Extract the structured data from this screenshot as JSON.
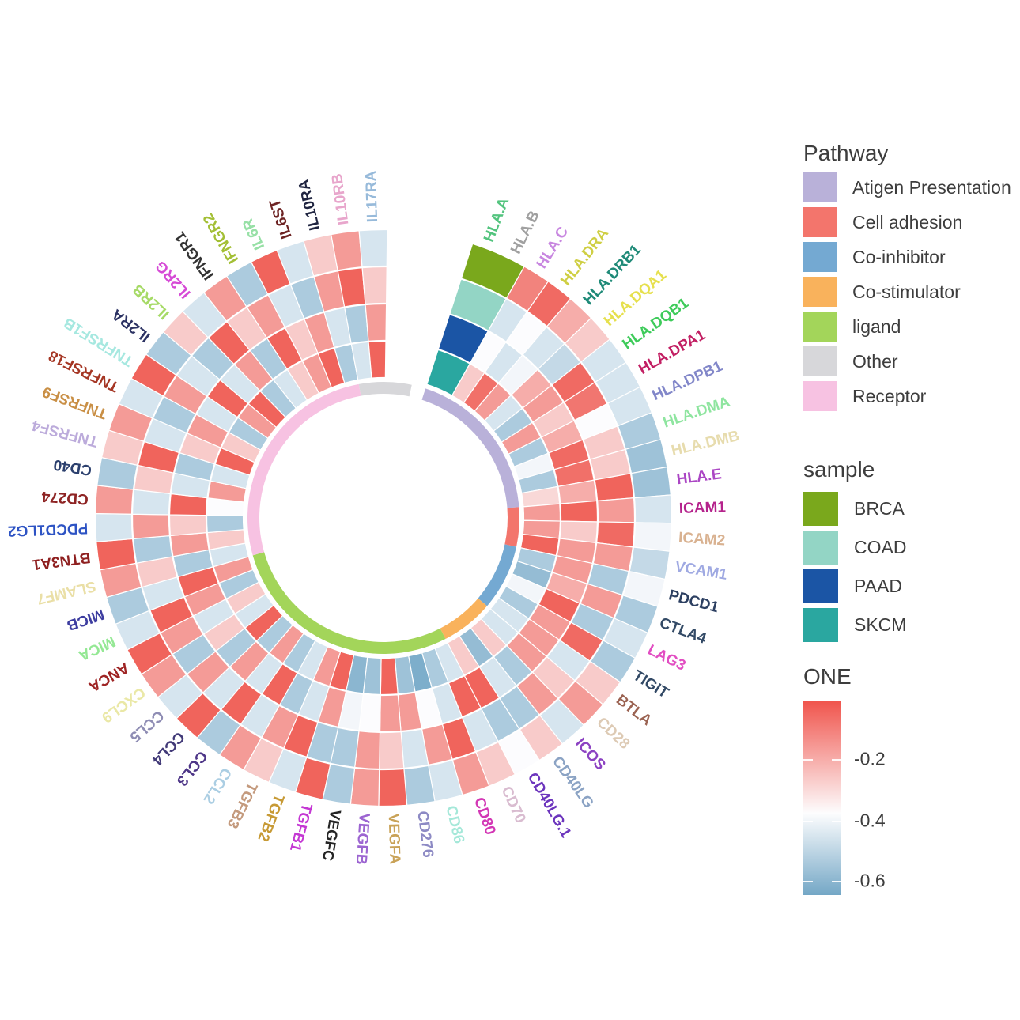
{
  "pathway_legend": {
    "title": "Pathway",
    "items": [
      {
        "label": "Atigen Presentation",
        "color": "#b9b1d9"
      },
      {
        "label": "Cell adhesion",
        "color": "#f3756c"
      },
      {
        "label": "Co-inhibitor",
        "color": "#74a9d2"
      },
      {
        "label": "Co-stimulator",
        "color": "#f9b25c"
      },
      {
        "label": "ligand",
        "color": "#a3d55a"
      },
      {
        "label": "Other",
        "color": "#d7d7da"
      },
      {
        "label": "Receptor",
        "color": "#f7c2e2"
      }
    ]
  },
  "sample_legend": {
    "title": "sample",
    "items": [
      {
        "label": "BRCA",
        "color": "#7aa81c"
      },
      {
        "label": "COAD",
        "color": "#93d5c5"
      },
      {
        "label": "PAAD",
        "color": "#1b55a5"
      },
      {
        "label": "SKCM",
        "color": "#2aa7a0"
      }
    ]
  },
  "colorbar": {
    "title": "ONE",
    "gradient_top": "#f0544c",
    "gradient_mid": "#fdfdfe",
    "gradient_bottom": "#74a7c6",
    "ticks": [
      {
        "label": "-0.2",
        "pos": 0.3
      },
      {
        "label": "-0.4",
        "pos": 0.617
      },
      {
        "label": "-0.6",
        "pos": 0.926
      }
    ]
  },
  "chart_data": {
    "type": "heatmap",
    "subtype": "circular-heatmap",
    "value_scale": {
      "name": "ONE",
      "red_at": -0.1,
      "white_at": -0.38,
      "blue_at": -0.68
    },
    "rings_outer_to_inner": [
      "BRCA",
      "COAD",
      "PAAD",
      "SKCM"
    ],
    "genes": [
      {
        "name": "HLA.A",
        "pathway": "Atigen Presentation",
        "label_color": "#53c47e"
      },
      {
        "name": "HLA.B",
        "pathway": "Atigen Presentation",
        "label_color": "#a0a0a0"
      },
      {
        "name": "HLA.C",
        "pathway": "Atigen Presentation",
        "label_color": "#c887e0"
      },
      {
        "name": "HLA.DRA",
        "pathway": "Atigen Presentation",
        "label_color": "#cfcf44"
      },
      {
        "name": "HLA.DRB1",
        "pathway": "Atigen Presentation",
        "label_color": "#1f8a78"
      },
      {
        "name": "HLA.DQA1",
        "pathway": "Atigen Presentation",
        "label_color": "#e6e04e"
      },
      {
        "name": "HLA.DQB1",
        "pathway": "Atigen Presentation",
        "label_color": "#3ecb5a"
      },
      {
        "name": "HLA.DPA1",
        "pathway": "Atigen Presentation",
        "label_color": "#c21f63"
      },
      {
        "name": "HLA.DPB1",
        "pathway": "Atigen Presentation",
        "label_color": "#8287c9"
      },
      {
        "name": "HLA.DMA",
        "pathway": "Atigen Presentation",
        "label_color": "#8fe5a0"
      },
      {
        "name": "HLA.DMB",
        "pathway": "Atigen Presentation",
        "label_color": "#e7dcae"
      },
      {
        "name": "HLA.E",
        "pathway": "Atigen Presentation",
        "label_color": "#ab46c4"
      },
      {
        "name": "ICAM1",
        "pathway": "Cell adhesion",
        "label_color": "#b5238c"
      },
      {
        "name": "ICAM2",
        "pathway": "Cell adhesion",
        "label_color": "#d9b291"
      },
      {
        "name": "VCAM1",
        "pathway": "Cell adhesion",
        "label_color": "#9fa9e2"
      },
      {
        "name": "PDCD1",
        "pathway": "Co-inhibitor",
        "label_color": "#2c3f61"
      },
      {
        "name": "CTLA4",
        "pathway": "Co-inhibitor",
        "label_color": "#334a66"
      },
      {
        "name": "LAG3",
        "pathway": "Co-inhibitor",
        "label_color": "#e24ec2"
      },
      {
        "name": "TIGIT",
        "pathway": "Co-inhibitor",
        "label_color": "#334a66"
      },
      {
        "name": "BTLA",
        "pathway": "Co-inhibitor",
        "label_color": "#9b6352"
      },
      {
        "name": "CD28",
        "pathway": "Co-stimulator",
        "label_color": "#ddcab4"
      },
      {
        "name": "ICOS",
        "pathway": "Co-stimulator",
        "label_color": "#8c42c2"
      },
      {
        "name": "CD40LG",
        "pathway": "Co-stimulator",
        "label_color": "#8ba3c4"
      },
      {
        "name": "CD40LG.1",
        "pathway": "Co-stimulator",
        "label_color": "#6c35bd"
      },
      {
        "name": "CD70",
        "pathway": "ligand",
        "label_color": "#d9bcd0"
      },
      {
        "name": "CD80",
        "pathway": "ligand",
        "label_color": "#d337b5"
      },
      {
        "name": "CD86",
        "pathway": "ligand",
        "label_color": "#a5e8d9"
      },
      {
        "name": "CD276",
        "pathway": "ligand",
        "label_color": "#8d8ac4"
      },
      {
        "name": "VEGFA",
        "pathway": "ligand",
        "label_color": "#c9a257"
      },
      {
        "name": "VEGFB",
        "pathway": "ligand",
        "label_color": "#9c64d1"
      },
      {
        "name": "VEGFC",
        "pathway": "ligand",
        "label_color": "#252525"
      },
      {
        "name": "TGFB1",
        "pathway": "ligand",
        "label_color": "#c437d3"
      },
      {
        "name": "TGFB2",
        "pathway": "ligand",
        "label_color": "#c79a35"
      },
      {
        "name": "TGFB3",
        "pathway": "ligand",
        "label_color": "#c49a7d"
      },
      {
        "name": "CCL2",
        "pathway": "ligand",
        "label_color": "#abcee3"
      },
      {
        "name": "CCL3",
        "pathway": "ligand",
        "label_color": "#4d3587"
      },
      {
        "name": "CCL4",
        "pathway": "ligand",
        "label_color": "#423a78"
      },
      {
        "name": "CCL5",
        "pathway": "ligand",
        "label_color": "#8f8db4"
      },
      {
        "name": "CXCL9",
        "pathway": "ligand",
        "label_color": "#eae8a6"
      },
      {
        "name": "ANCA",
        "pathway": "ligand",
        "label_color": "#9e2424"
      },
      {
        "name": "MICA",
        "pathway": "ligand",
        "label_color": "#94e894"
      },
      {
        "name": "MICB",
        "pathway": "ligand",
        "label_color": "#3d3da0"
      },
      {
        "name": "SLAMF7",
        "pathway": "Receptor",
        "label_color": "#eadfa6"
      },
      {
        "name": "BTN3A1",
        "pathway": "Receptor",
        "label_color": "#8e1f1f"
      },
      {
        "name": "PDCD1LG2",
        "pathway": "Receptor",
        "label_color": "#2d53c4"
      },
      {
        "name": "CD274",
        "pathway": "Receptor",
        "label_color": "#8e2424"
      },
      {
        "name": "CD40",
        "pathway": "Receptor",
        "label_color": "#2c406e"
      },
      {
        "name": "TNFRSF4",
        "pathway": "Receptor",
        "label_color": "#bcabdb"
      },
      {
        "name": "TNFRSF9",
        "pathway": "Receptor",
        "label_color": "#c98f45"
      },
      {
        "name": "TNFRSF18",
        "pathway": "Receptor",
        "label_color": "#a53624"
      },
      {
        "name": "TNFRSF1B",
        "pathway": "Receptor",
        "label_color": "#a6e8e0"
      },
      {
        "name": "IL2RA",
        "pathway": "Receptor",
        "label_color": "#2c3263"
      },
      {
        "name": "IL2RB",
        "pathway": "Receptor",
        "label_color": "#a6da66"
      },
      {
        "name": "IL2RG",
        "pathway": "Receptor",
        "label_color": "#d64ad6"
      },
      {
        "name": "IFNGR1",
        "pathway": "Receptor",
        "label_color": "#333333"
      },
      {
        "name": "IFNGR2",
        "pathway": "Receptor",
        "label_color": "#a3bf35"
      },
      {
        "name": "IL6R",
        "pathway": "Receptor",
        "label_color": "#97e0a6"
      },
      {
        "name": "IL6ST",
        "pathway": "Receptor",
        "label_color": "#6e2424"
      },
      {
        "name": "IL10RA",
        "pathway": "Receptor",
        "label_color": "#1f2440"
      },
      {
        "name": "IL10RB",
        "pathway": "Other",
        "label_color": "#e8a6cc"
      },
      {
        "name": "IL17RA",
        "pathway": "Other",
        "label_color": "#97bada"
      }
    ],
    "series": [
      {
        "name": "BRCA",
        "values": [
          -0.44,
          -0.55,
          -0.18,
          -0.14,
          -0.25,
          -0.3,
          -0.46,
          -0.46,
          -0.46,
          -0.55,
          -0.58,
          -0.58,
          -0.46,
          -0.4,
          -0.5,
          -0.4,
          -0.55,
          -0.46,
          -0.55,
          -0.3,
          -0.22,
          -0.46,
          -0.3,
          -0.38,
          -0.3,
          -0.22,
          -0.46,
          -0.55,
          -0.13,
          -0.22,
          -0.55,
          -0.13,
          -0.46,
          -0.3,
          -0.22,
          -0.55,
          -0.13,
          -0.46,
          -0.22,
          -0.13,
          -0.46,
          -0.55,
          -0.22,
          -0.13,
          -0.46,
          -0.22,
          -0.55,
          -0.3,
          -0.22,
          -0.46,
          -0.13,
          -0.55,
          -0.3,
          -0.46,
          -0.22,
          -0.55,
          -0.13,
          -0.46,
          -0.3,
          -0.22,
          -0.46
        ]
      },
      {
        "name": "COAD",
        "values": [
          -0.5,
          -0.55,
          -0.46,
          -0.38,
          -0.46,
          -0.5,
          -0.14,
          -0.16,
          -0.38,
          -0.3,
          -0.3,
          -0.13,
          -0.22,
          -0.14,
          -0.22,
          -0.55,
          -0.22,
          -0.55,
          -0.14,
          -0.46,
          -0.3,
          -0.22,
          -0.55,
          -0.55,
          -0.46,
          -0.13,
          -0.22,
          -0.46,
          -0.3,
          -0.22,
          -0.55,
          -0.55,
          -0.13,
          -0.22,
          -0.46,
          -0.13,
          -0.46,
          -0.22,
          -0.55,
          -0.22,
          -0.13,
          -0.46,
          -0.3,
          -0.55,
          -0.22,
          -0.46,
          -0.3,
          -0.13,
          -0.46,
          -0.55,
          -0.22,
          -0.46,
          -0.55,
          -0.13,
          -0.3,
          -0.22,
          -0.46,
          -0.55,
          -0.22,
          -0.13,
          -0.3
        ]
      },
      {
        "name": "PAAD",
        "values": [
          -0.55,
          -0.62,
          -0.38,
          -0.46,
          -0.4,
          -0.25,
          -0.22,
          -0.3,
          -0.25,
          -0.14,
          -0.15,
          -0.25,
          -0.13,
          -0.3,
          -0.22,
          -0.22,
          -0.25,
          -0.13,
          -0.22,
          -0.22,
          -0.22,
          -0.55,
          -0.46,
          -0.13,
          -0.13,
          -0.46,
          -0.38,
          -0.22,
          -0.22,
          -0.38,
          -0.4,
          -0.22,
          -0.46,
          -0.55,
          -0.13,
          -0.46,
          -0.22,
          -0.55,
          -0.3,
          -0.46,
          -0.22,
          -0.13,
          -0.55,
          -0.22,
          -0.3,
          -0.13,
          -0.46,
          -0.55,
          -0.3,
          -0.22,
          -0.46,
          -0.13,
          -0.46,
          -0.22,
          -0.55,
          -0.13,
          -0.3,
          -0.22,
          -0.46,
          -0.55,
          -0.22
        ]
      },
      {
        "name": "SKCM",
        "values": [
          -0.46,
          -0.3,
          -0.3,
          -0.15,
          -0.22,
          -0.46,
          -0.55,
          -0.22,
          -0.55,
          -0.4,
          -0.55,
          -0.32,
          -0.22,
          -0.22,
          -0.13,
          -0.55,
          -0.6,
          -0.4,
          -0.55,
          -0.46,
          -0.46,
          -0.3,
          -0.6,
          -0.3,
          -0.46,
          -0.55,
          -0.65,
          -0.58,
          -0.13,
          -0.58,
          -0.62,
          -0.13,
          -0.22,
          -0.46,
          -0.55,
          -0.22,
          -0.55,
          -0.13,
          -0.46,
          -0.3,
          -0.55,
          -0.22,
          -0.46,
          -0.3,
          -0.55,
          -0.38,
          -0.22,
          -0.46,
          -0.13,
          -0.3,
          -0.55,
          -0.22,
          -0.13,
          -0.55,
          -0.46,
          -0.3,
          -0.22,
          -0.13,
          -0.55,
          -0.46,
          -0.13
        ]
      }
    ]
  }
}
